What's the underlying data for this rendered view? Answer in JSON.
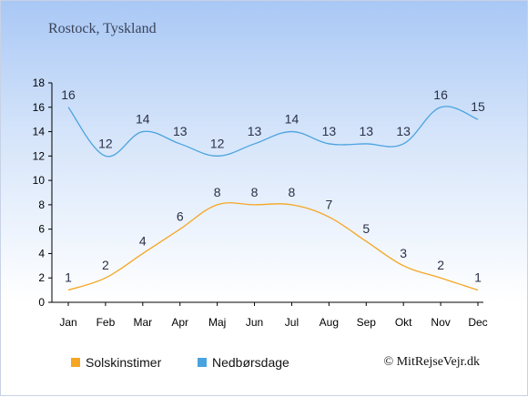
{
  "title": "Rostock, Tyskland",
  "credit": "© MitRejseVejr.dk",
  "chart_data": {
    "type": "line",
    "categories": [
      "Jan",
      "Feb",
      "Mar",
      "Apr",
      "Maj",
      "Jun",
      "Jul",
      "Aug",
      "Sep",
      "Okt",
      "Nov",
      "Dec"
    ],
    "ylim": [
      0,
      18
    ],
    "yticks": [
      0,
      2,
      4,
      6,
      8,
      10,
      12,
      14,
      16,
      18
    ],
    "grid": false,
    "legend_position": "bottom",
    "series": [
      {
        "name": "Solskinstimer",
        "color": "#f5a623",
        "values": [
          1,
          2,
          4,
          6,
          8,
          8,
          8,
          7,
          5,
          3,
          2,
          1
        ]
      },
      {
        "name": "Nedbørsdage",
        "color": "#4aa3df",
        "values": [
          16,
          12,
          14,
          13,
          12,
          13,
          14,
          13,
          13,
          13,
          16,
          15
        ]
      }
    ]
  }
}
